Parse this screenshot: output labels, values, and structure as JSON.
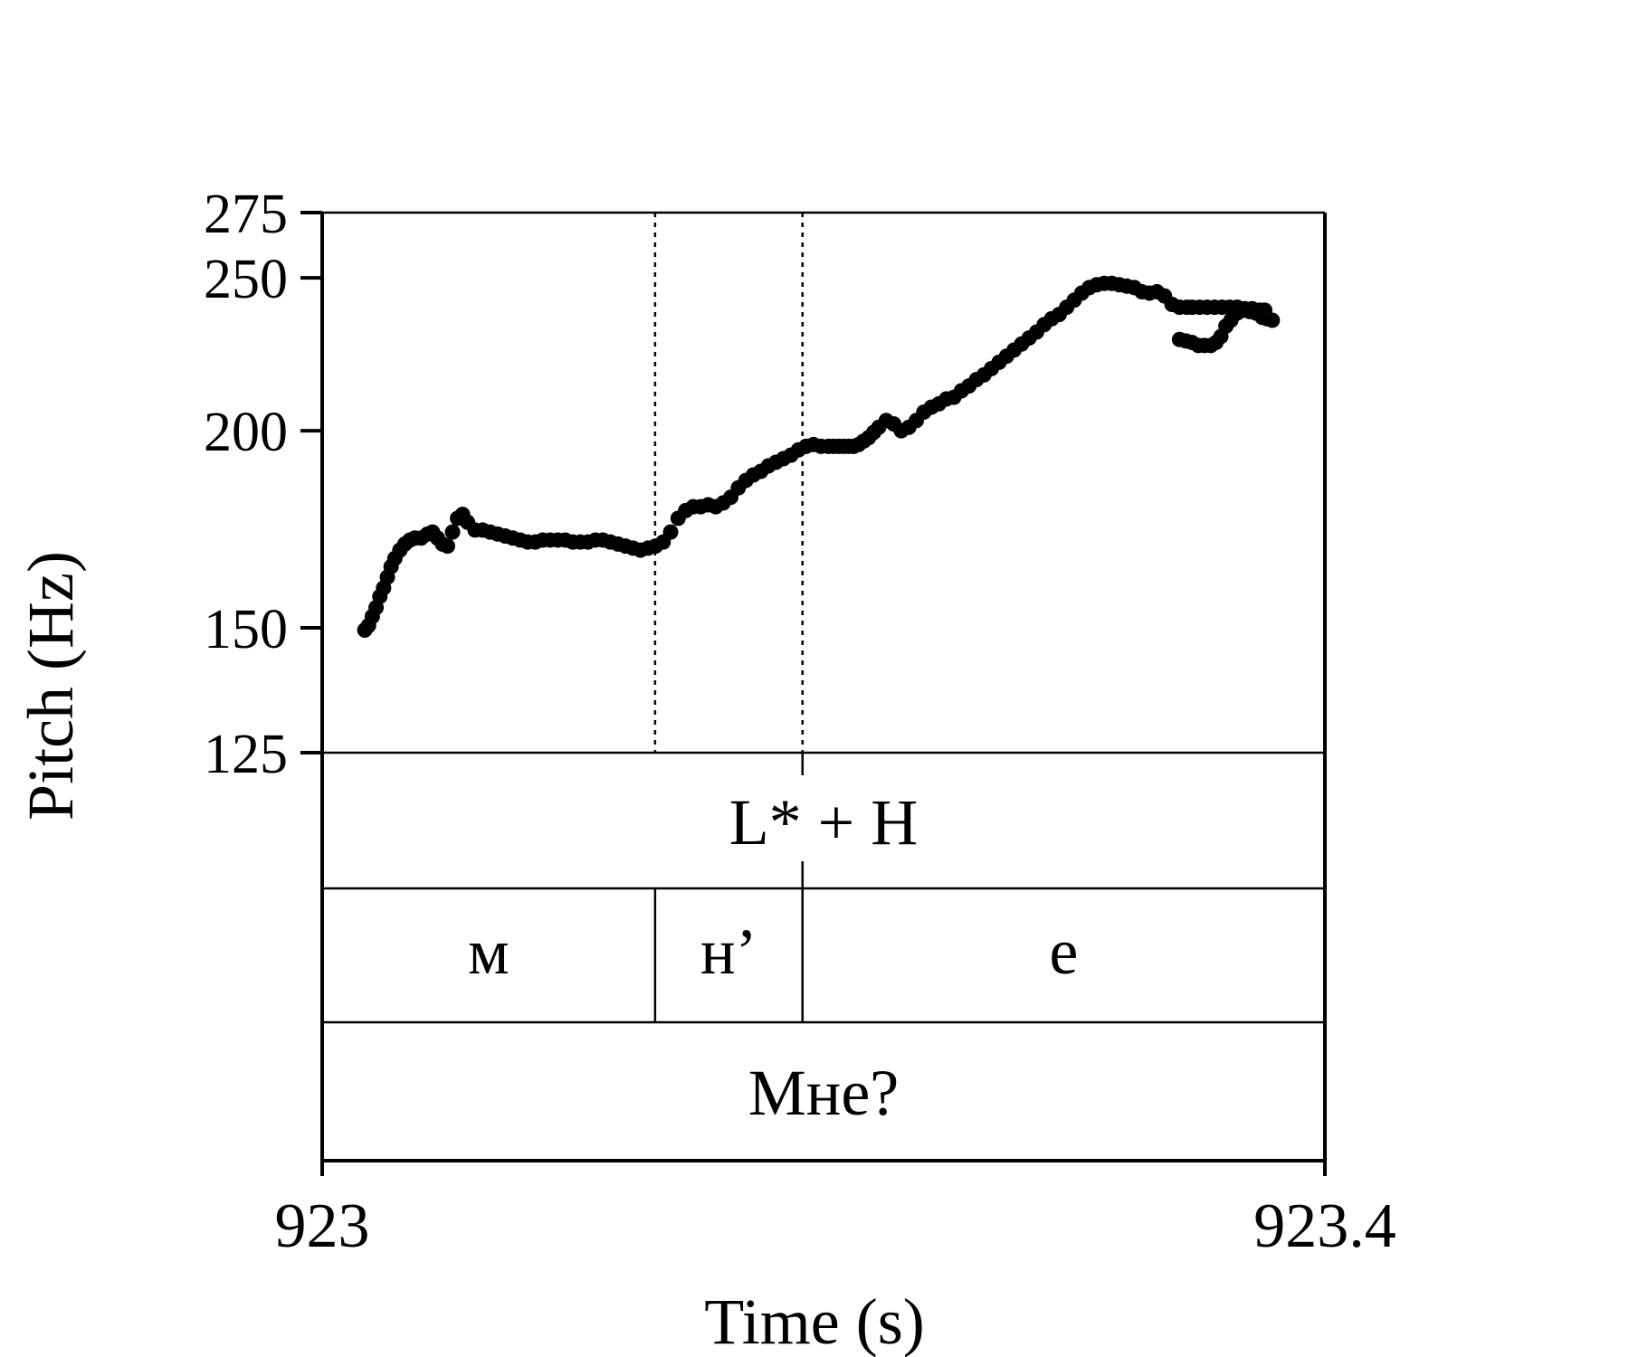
{
  "chart_data": {
    "type": "scatter",
    "xlabel": "Time (s)",
    "ylabel": "Pitch (Hz)",
    "xlim": [
      923,
      923.4
    ],
    "ylim": [
      125,
      275
    ],
    "x_ticks": [
      923,
      923.4
    ],
    "y_ticks": [
      125,
      150,
      200,
      250,
      275
    ],
    "boundaries": [
      923.1328,
      923.1916
    ],
    "series": [
      {
        "x": [
          923.017,
          923.0185,
          923.02,
          923.0215,
          923.023,
          923.0245,
          923.026,
          923.0275,
          923.029,
          923.031,
          923.033,
          923.035,
          923.037,
          923.0395,
          923.042,
          923.044,
          923.046,
          923.048,
          923.05,
          923.052,
          923.054,
          923.056,
          923.058,
          923.061,
          923.064,
          923.067,
          923.07,
          923.073,
          923.076,
          923.079,
          923.082,
          923.085,
          923.088,
          923.091,
          923.094,
          923.097,
          923.1,
          923.103,
          923.106,
          923.109,
          923.112,
          923.115,
          923.118,
          923.121,
          923.124,
          923.127,
          923.13,
          923.133,
          923.136,
          923.139,
          923.142,
          923.145,
          923.148,
          923.151,
          923.154,
          923.157,
          923.16,
          923.163,
          923.166,
          923.169,
          923.172,
          923.175,
          923.178,
          923.181,
          923.184,
          923.187,
          923.19,
          923.193,
          923.196,
          923.199,
          923.202,
          923.204,
          923.206,
          923.208,
          923.21,
          923.212,
          923.214,
          923.216,
          923.218,
          923.22,
          923.222,
          923.225,
          923.228,
          923.231,
          923.234,
          923.237,
          923.24,
          923.243,
          923.246,
          923.249,
          923.252,
          923.255,
          923.258,
          923.261,
          923.264,
          923.267,
          923.27,
          923.273,
          923.276,
          923.279,
          923.282,
          923.285,
          923.288,
          923.291,
          923.294,
          923.297,
          923.3,
          923.303,
          923.306,
          923.309,
          923.312,
          923.315,
          923.318,
          923.321,
          923.324,
          923.327,
          923.33,
          923.333,
          923.336,
          923.339,
          923.342,
          923.345,
          923.347,
          923.35,
          923.353,
          923.356,
          923.359,
          923.362,
          923.365,
          923.368,
          923.371,
          923.374,
          923.376
        ],
        "y": [
          149.5,
          150.5,
          152.5,
          154.5,
          157.0,
          159.0,
          161.5,
          164.0,
          166.0,
          168.0,
          169.5,
          170.5,
          171.0,
          171.0,
          172.0,
          172.5,
          171.0,
          169.5,
          169.0,
          172.5,
          176.0,
          177.0,
          175.0,
          173.0,
          173.0,
          172.5,
          172.0,
          171.5,
          171.0,
          170.5,
          170.0,
          170.0,
          170.5,
          170.5,
          170.5,
          170.5,
          170.0,
          170.0,
          170.0,
          170.5,
          170.5,
          170.0,
          169.5,
          169.0,
          168.5,
          168.0,
          168.5,
          169.0,
          170.0,
          172.5,
          176.0,
          178.0,
          179.0,
          179.0,
          179.5,
          179.0,
          180.0,
          181.5,
          184.0,
          186.0,
          187.5,
          188.5,
          190.0,
          191.0,
          192.0,
          193.0,
          194.5,
          195.5,
          196.0,
          195.5,
          195.5,
          195.5,
          195.5,
          195.5,
          195.5,
          195.5,
          196.0,
          197.0,
          198.0,
          199.5,
          201.0,
          203.0,
          202.0,
          200.0,
          201.0,
          203.0,
          205.5,
          207.0,
          208.0,
          209.5,
          210.0,
          212.0,
          213.5,
          215.5,
          217.0,
          219.0,
          221.0,
          223.0,
          225.0,
          227.0,
          229.0,
          231.0,
          233.5,
          235.5,
          237.0,
          239.5,
          242.0,
          244.5,
          246.5,
          247.5,
          248.0,
          248.0,
          247.5,
          247.0,
          246.5,
          245.0,
          244.5,
          245.0,
          243.5,
          240.5,
          239.5,
          239.5,
          239.5,
          239.5,
          239.5,
          239.5,
          239.5,
          239.5,
          239.5,
          239.0,
          239.0,
          238.5,
          238.5
        ]
      },
      {
        "x": [
          923.342,
          923.3445,
          923.347,
          923.3495,
          923.352,
          923.3545,
          923.3565,
          923.3585,
          923.3605,
          923.3625,
          923.365,
          923.3675,
          923.37,
          923.3725,
          923.375,
          923.377,
          923.379
        ],
        "y": [
          228.5,
          228.0,
          227.5,
          226.5,
          226.5,
          226.5,
          227.5,
          229.5,
          233.0,
          235.0,
          237.5,
          238.5,
          238.0,
          237.5,
          236.0,
          235.5,
          235.0
        ]
      }
    ]
  },
  "tiers": {
    "tone": {
      "label": "L* + H"
    },
    "segments": [
      {
        "start": 923.0,
        "end": 923.1328,
        "label": "м"
      },
      {
        "start": 923.1328,
        "end": 923.1916,
        "label": "н’"
      },
      {
        "start": 923.1916,
        "end": 923.4,
        "label": "е"
      }
    ],
    "word": {
      "label": "Мне?"
    }
  }
}
